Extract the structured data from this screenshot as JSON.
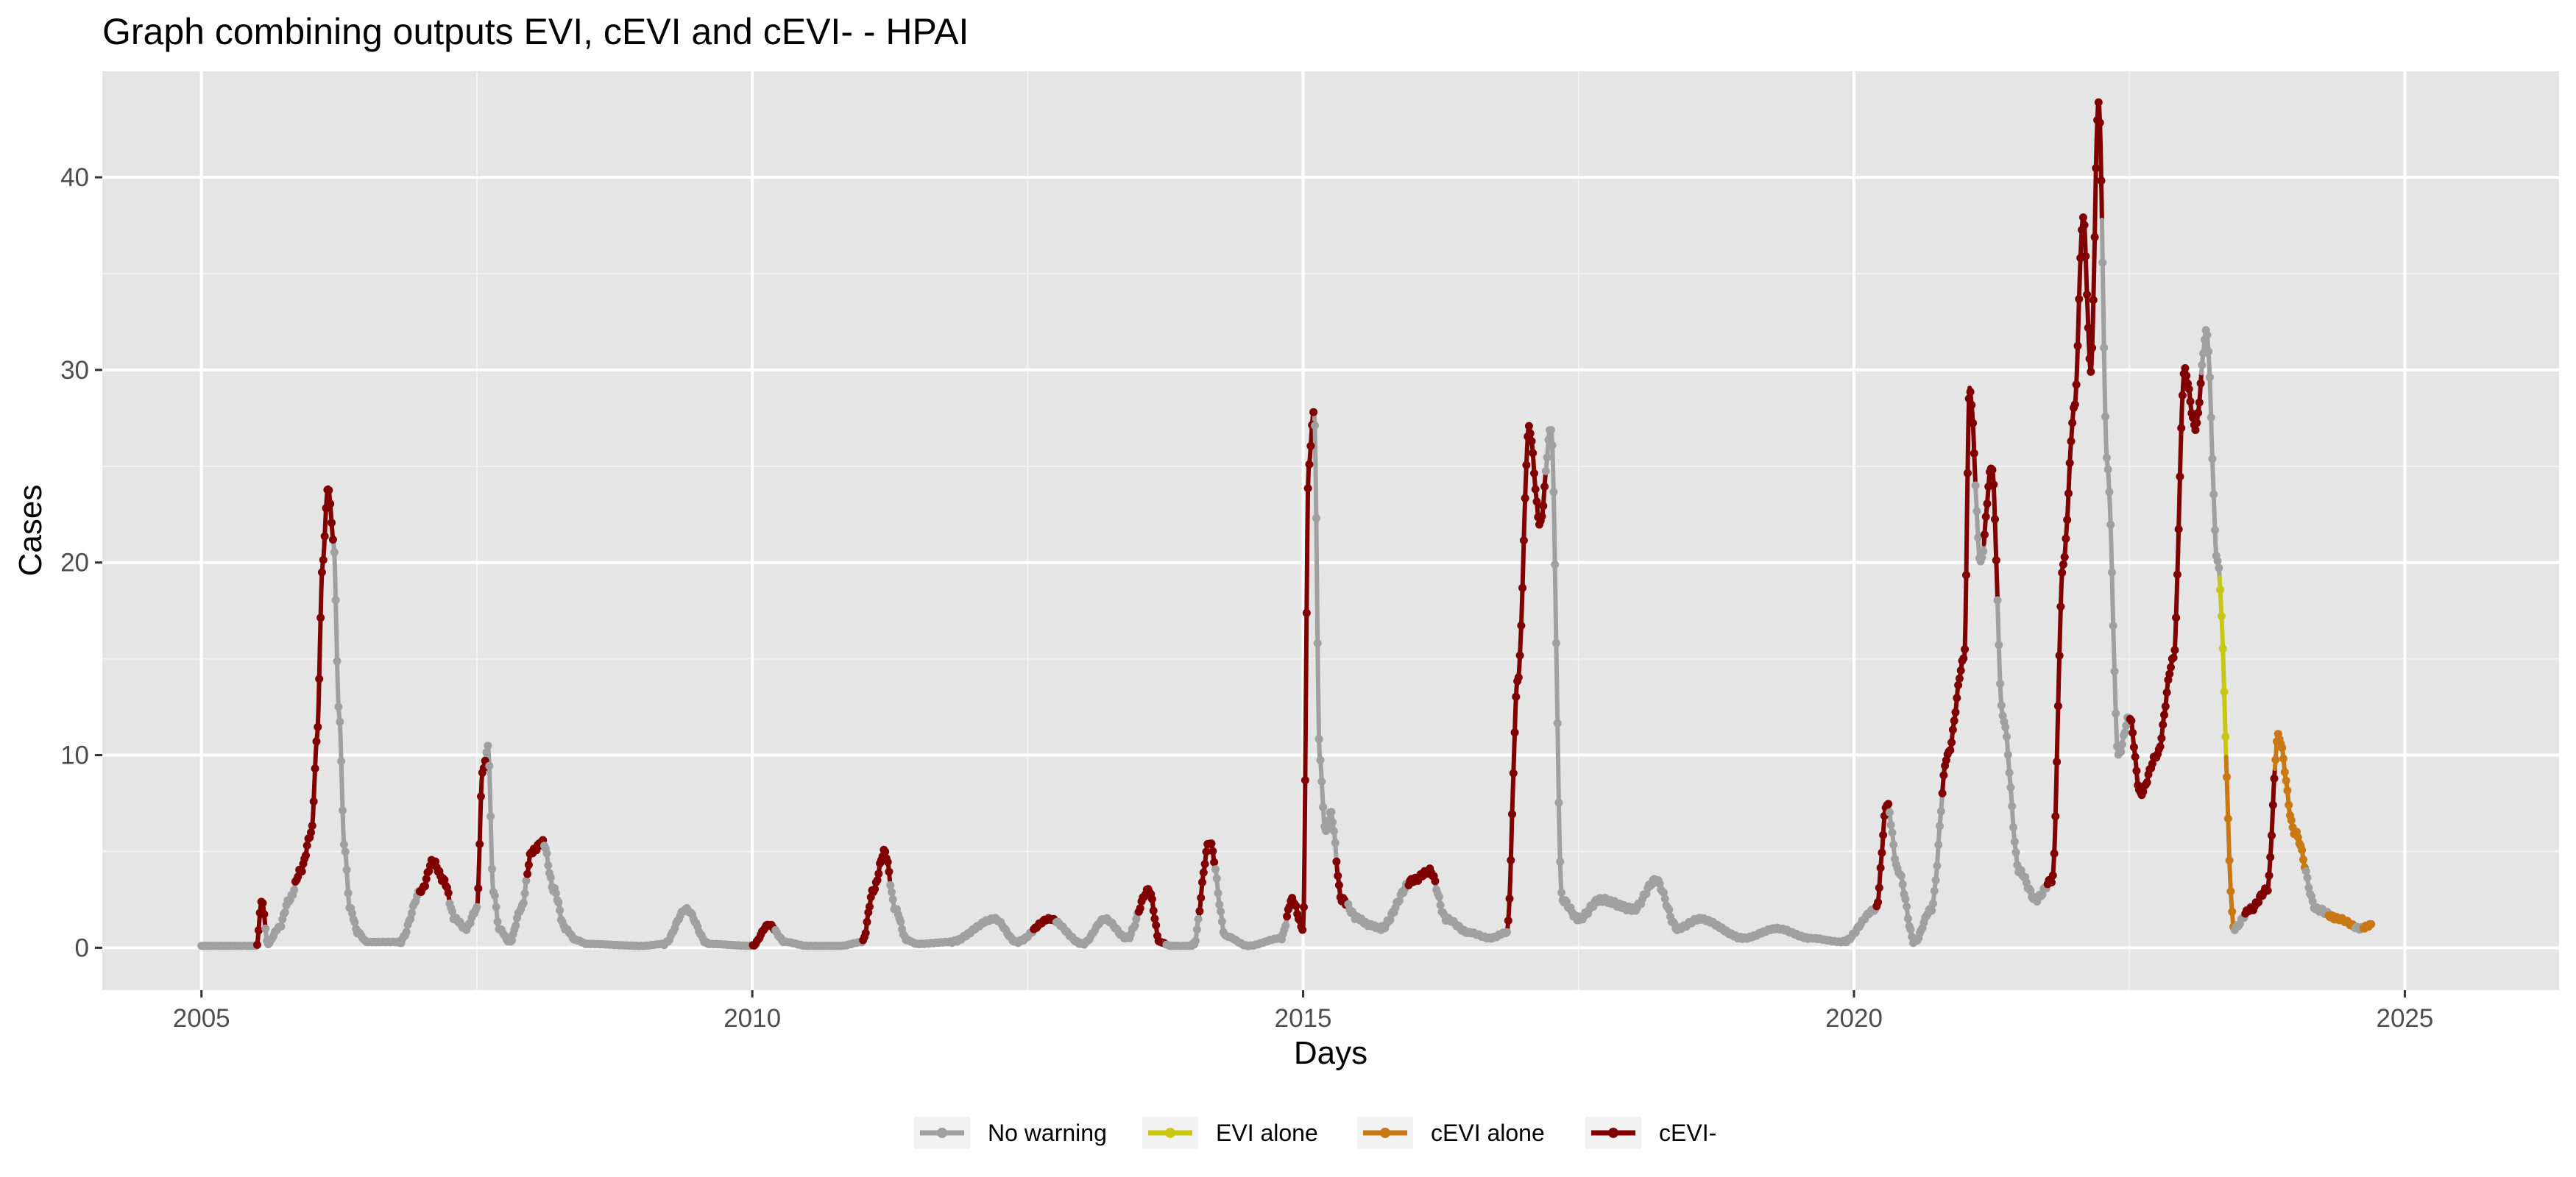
{
  "chart_data": {
    "type": "line",
    "title": "Graph combining outputs EVI, cEVI and cEVI- - HPAI",
    "xlabel": "Days",
    "ylabel": "Cases",
    "xlim": [
      2004.1,
      2026.4
    ],
    "ylim": [
      -2.2,
      45.5
    ],
    "x_ticks": [
      2005,
      2010,
      2015,
      2020,
      2025
    ],
    "y_ticks": [
      0,
      10,
      20,
      30,
      40
    ],
    "grid": true,
    "legend_position": "bottom",
    "legend": [
      {
        "key": "none",
        "label": "No warning",
        "color": "#a0a0a0"
      },
      {
        "key": "evi",
        "label": "EVI alone",
        "color": "#c8c814"
      },
      {
        "key": "cevi",
        "label": "cEVI alone",
        "color": "#c87814"
      },
      {
        "key": "cevim",
        "label": "cEVI-",
        "color": "#800000"
      }
    ],
    "series_x": [
      2005.0,
      2005.5,
      2005.55,
      2005.6,
      2005.7,
      2005.8,
      2005.9,
      2006.0,
      2006.05,
      2006.1,
      2006.15,
      2006.2,
      2006.25,
      2006.3,
      2006.35,
      2006.42,
      2006.5,
      2006.6,
      2006.8,
      2007.0,
      2007.1,
      2007.2,
      2007.3,
      2007.4,
      2007.5,
      2007.55,
      2007.6,
      2007.65,
      2007.7,
      2007.8,
      2007.9,
      2008.0,
      2008.1,
      2008.2,
      2008.3,
      2008.4,
      2008.5,
      2009.0,
      2009.2,
      2009.4,
      2009.6,
      2010.0,
      2010.15,
      2010.3,
      2010.5,
      2010.8,
      2011.0,
      2011.1,
      2011.2,
      2011.3,
      2011.4,
      2011.5,
      2011.8,
      2012.2,
      2012.4,
      2012.7,
      2013.0,
      2013.2,
      2013.4,
      2013.6,
      2013.7,
      2013.8,
      2014.0,
      2014.15,
      2014.3,
      2014.5,
      2014.8,
      2014.9,
      2015.0,
      2015.05,
      2015.1,
      2015.15,
      2015.2,
      2015.25,
      2015.35,
      2015.5,
      2015.6,
      2015.7,
      2016.0,
      2016.15,
      2016.3,
      2016.5,
      2016.7,
      2016.85,
      2016.95,
      2017.05,
      2017.15,
      2017.25,
      2017.35,
      2017.5,
      2017.7,
      2018.0,
      2018.2,
      2018.4,
      2018.6,
      2019.0,
      2019.3,
      2019.6,
      2019.9,
      2020.2,
      2020.3,
      2020.4,
      2020.55,
      2020.7,
      2020.85,
      2021.0,
      2021.05,
      2021.15,
      2021.25,
      2021.35,
      2021.5,
      2021.65,
      2021.8,
      2021.9,
      2022.0,
      2022.08,
      2022.15,
      2022.22,
      2022.3,
      2022.4,
      2022.5,
      2022.6,
      2022.75,
      2022.9,
      2023.0,
      2023.1,
      2023.2,
      2023.3,
      2023.45,
      2023.6,
      2023.75,
      2023.85,
      2024.0,
      2024.2,
      2024.4,
      2024.6,
      2024.7
    ],
    "series_y": [
      0.1,
      0.1,
      2.5,
      0.2,
      1.0,
      2.5,
      4.0,
      6.0,
      11.0,
      20.0,
      24.0,
      21.0,
      12.0,
      5.0,
      2.0,
      0.8,
      0.3,
      0.3,
      0.3,
      3.0,
      4.5,
      3.5,
      1.5,
      1.0,
      2.0,
      9.0,
      10.5,
      3.0,
      1.0,
      0.3,
      2.0,
      5.0,
      5.5,
      3.0,
      1.0,
      0.4,
      0.2,
      0.1,
      0.2,
      2.0,
      0.2,
      0.1,
      1.2,
      0.3,
      0.1,
      0.1,
      0.3,
      3.0,
      5.0,
      2.0,
      0.4,
      0.2,
      0.3,
      1.5,
      0.3,
      1.5,
      0.2,
      1.5,
      0.5,
      3.0,
      0.3,
      0.1,
      0.1,
      5.5,
      0.6,
      0.1,
      0.5,
      2.5,
      1.0,
      25.0,
      28.0,
      10.0,
      6.0,
      7.0,
      2.5,
      1.5,
      1.2,
      1.0,
      3.5,
      4.0,
      1.5,
      0.8,
      0.5,
      0.8,
      14.0,
      27.0,
      22.0,
      27.0,
      2.5,
      1.5,
      2.5,
      2.0,
      3.5,
      1.0,
      1.5,
      0.5,
      1.0,
      0.5,
      0.3,
      2.0,
      7.5,
      4.0,
      0.3,
      2.0,
      10.0,
      15.0,
      29.0,
      20.0,
      25.0,
      12.0,
      4.0,
      2.5,
      3.5,
      20.0,
      28.0,
      38.0,
      30.0,
      44.0,
      25.0,
      10.0,
      12.0,
      8.0,
      10.0,
      15.0,
      30.0,
      27.0,
      32.0,
      20.0,
      1.0,
      2.0,
      3.0,
      11.0,
      6.0,
      2.0,
      1.5,
      1.0,
      1.2
    ],
    "segments": [
      {
        "warning": "none",
        "x_from": 2005.0,
        "x_to": 2005.5
      },
      {
        "warning": "cevim",
        "x_from": 2005.5,
        "x_to": 2005.58
      },
      {
        "warning": "none",
        "x_from": 2005.58,
        "x_to": 2005.85
      },
      {
        "warning": "cevim",
        "x_from": 2005.85,
        "x_to": 2006.2
      },
      {
        "warning": "none",
        "x_from": 2006.2,
        "x_to": 2006.98
      },
      {
        "warning": "cevim",
        "x_from": 2006.98,
        "x_to": 2007.25
      },
      {
        "warning": "none",
        "x_from": 2007.25,
        "x_to": 2007.5
      },
      {
        "warning": "cevim",
        "x_from": 2007.5,
        "x_to": 2007.58
      },
      {
        "warning": "none",
        "x_from": 2007.58,
        "x_to": 2007.95
      },
      {
        "warning": "cevim",
        "x_from": 2007.95,
        "x_to": 2008.1
      },
      {
        "warning": "none",
        "x_from": 2008.1,
        "x_to": 2010.0
      },
      {
        "warning": "cevim",
        "x_from": 2010.0,
        "x_to": 2010.2
      },
      {
        "warning": "none",
        "x_from": 2010.2,
        "x_to": 2011.0
      },
      {
        "warning": "cevim",
        "x_from": 2011.0,
        "x_to": 2011.25
      },
      {
        "warning": "none",
        "x_from": 2011.25,
        "x_to": 2012.55
      },
      {
        "warning": "cevim",
        "x_from": 2012.55,
        "x_to": 2012.75
      },
      {
        "warning": "none",
        "x_from": 2012.75,
        "x_to": 2013.5
      },
      {
        "warning": "cevim",
        "x_from": 2013.5,
        "x_to": 2013.75
      },
      {
        "warning": "none",
        "x_from": 2013.75,
        "x_to": 2014.05
      },
      {
        "warning": "cevim",
        "x_from": 2014.05,
        "x_to": 2014.2
      },
      {
        "warning": "none",
        "x_from": 2014.2,
        "x_to": 2014.85
      },
      {
        "warning": "cevim",
        "x_from": 2014.85,
        "x_to": 2015.1
      },
      {
        "warning": "none",
        "x_from": 2015.1,
        "x_to": 2015.3
      },
      {
        "warning": "cevim",
        "x_from": 2015.3,
        "x_to": 2015.4
      },
      {
        "warning": "none",
        "x_from": 2015.4,
        "x_to": 2015.95
      },
      {
        "warning": "cevim",
        "x_from": 2015.95,
        "x_to": 2016.2
      },
      {
        "warning": "none",
        "x_from": 2016.2,
        "x_to": 2016.85
      },
      {
        "warning": "cevim",
        "x_from": 2016.85,
        "x_to": 2017.2
      },
      {
        "warning": "none",
        "x_from": 2017.2,
        "x_to": 2020.2
      },
      {
        "warning": "cevim",
        "x_from": 2020.2,
        "x_to": 2020.32
      },
      {
        "warning": "none",
        "x_from": 2020.32,
        "x_to": 2020.8
      },
      {
        "warning": "cevim",
        "x_from": 2020.8,
        "x_to": 2021.1
      },
      {
        "warning": "none",
        "x_from": 2021.1,
        "x_to": 2021.18
      },
      {
        "warning": "cevim",
        "x_from": 2021.18,
        "x_to": 2021.3
      },
      {
        "warning": "none",
        "x_from": 2021.3,
        "x_to": 2021.75
      },
      {
        "warning": "cevim",
        "x_from": 2021.75,
        "x_to": 2022.25
      },
      {
        "warning": "none",
        "x_from": 2022.25,
        "x_to": 2022.5
      },
      {
        "warning": "cevim",
        "x_from": 2022.5,
        "x_to": 2023.15
      },
      {
        "warning": "none",
        "x_from": 2023.15,
        "x_to": 2023.32
      },
      {
        "warning": "evi",
        "x_from": 2023.32,
        "x_to": 2023.38
      },
      {
        "warning": "cevi",
        "x_from": 2023.38,
        "x_to": 2023.45
      },
      {
        "warning": "none",
        "x_from": 2023.45,
        "x_to": 2023.55
      },
      {
        "warning": "cevim",
        "x_from": 2023.55,
        "x_to": 2023.82
      },
      {
        "warning": "cevi",
        "x_from": 2023.82,
        "x_to": 2024.1
      },
      {
        "warning": "none",
        "x_from": 2024.1,
        "x_to": 2024.3
      },
      {
        "warning": "cevi",
        "x_from": 2024.3,
        "x_to": 2024.55
      },
      {
        "warning": "none",
        "x_from": 2024.55,
        "x_to": 2024.62
      },
      {
        "warning": "cevi",
        "x_from": 2024.62,
        "x_to": 2024.7
      }
    ]
  }
}
